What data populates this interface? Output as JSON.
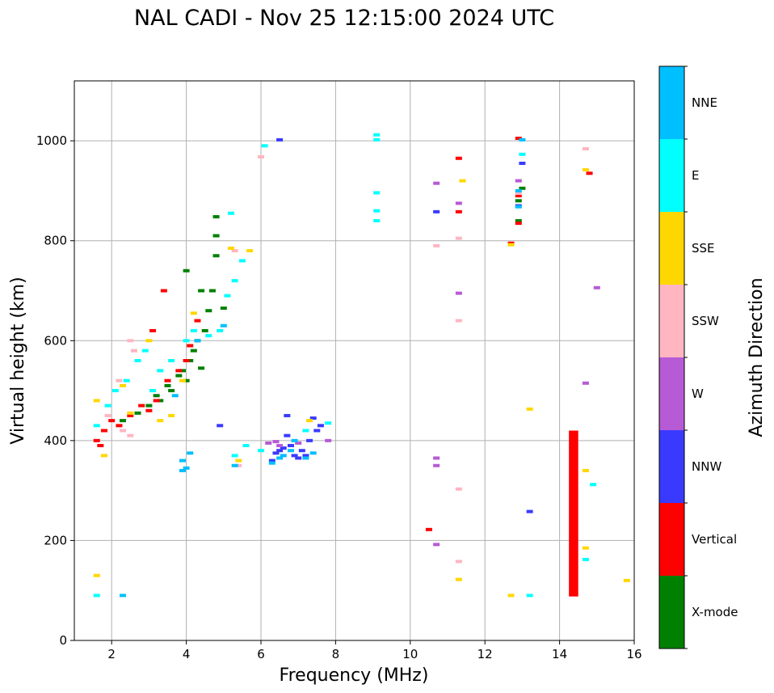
{
  "chart_data": {
    "type": "scatter",
    "title": "NAL CADI - Nov 25 12:15:00 2024 UTC",
    "xlabel": "Frequency (MHz)",
    "ylabel": "Virtual height (km)",
    "xlim": [
      1,
      16
    ],
    "ylim": [
      0,
      1120
    ],
    "xticks": [
      2,
      4,
      6,
      8,
      10,
      12,
      14,
      16
    ],
    "yticks": [
      0,
      200,
      400,
      600,
      800,
      1000
    ],
    "grid": true,
    "colorbar": {
      "label": "Azimuth Direction",
      "categories": [
        {
          "name": "X-mode",
          "color": "#008000"
        },
        {
          "name": "Vertical",
          "color": "#ff0000"
        },
        {
          "name": "NNW",
          "color": "#3a3aff"
        },
        {
          "name": "W",
          "color": "#b65ad6"
        },
        {
          "name": "SSW",
          "color": "#ffb6c1"
        },
        {
          "name": "SSE",
          "color": "#ffd700"
        },
        {
          "name": "E",
          "color": "#00ffff"
        },
        {
          "name": "NNE",
          "color": "#00bfff"
        }
      ]
    },
    "series": [
      {
        "name": "X-mode",
        "points": [
          [
            2.3,
            440
          ],
          [
            2.7,
            455
          ],
          [
            3.0,
            470
          ],
          [
            3.2,
            490
          ],
          [
            3.5,
            510
          ],
          [
            3.8,
            530
          ],
          [
            3.9,
            540
          ],
          [
            4.0,
            520
          ],
          [
            4.1,
            560
          ],
          [
            4.2,
            580
          ],
          [
            4.3,
            600
          ],
          [
            4.4,
            545
          ],
          [
            4.6,
            660
          ],
          [
            4.7,
            700
          ],
          [
            4.8,
            770
          ],
          [
            4.8,
            810
          ],
          [
            4.8,
            848
          ],
          [
            4.4,
            700
          ],
          [
            4.0,
            740
          ],
          [
            3.6,
            500
          ],
          [
            3.3,
            480
          ],
          [
            4.5,
            620
          ],
          [
            5.0,
            665
          ],
          [
            12.9,
            880
          ],
          [
            12.9,
            840
          ],
          [
            13.0,
            905
          ]
        ]
      },
      {
        "name": "Vertical",
        "points": [
          [
            1.6,
            400
          ],
          [
            1.8,
            420
          ],
          [
            2.0,
            440
          ],
          [
            2.2,
            430
          ],
          [
            2.5,
            450
          ],
          [
            2.8,
            470
          ],
          [
            3.0,
            460
          ],
          [
            3.2,
            480
          ],
          [
            3.5,
            520
          ],
          [
            3.8,
            540
          ],
          [
            4.0,
            560
          ],
          [
            4.1,
            590
          ],
          [
            4.3,
            640
          ],
          [
            3.1,
            620
          ],
          [
            3.4,
            700
          ],
          [
            1.7,
            390
          ],
          [
            11.3,
            965
          ],
          [
            11.3,
            858
          ],
          [
            12.7,
            795
          ],
          [
            12.9,
            1005
          ],
          [
            12.9,
            890
          ],
          [
            12.9,
            835
          ],
          [
            10.5,
            222
          ],
          [
            14.8,
            935
          ]
        ]
      },
      {
        "name": "NNW",
        "points": [
          [
            6.3,
            360
          ],
          [
            6.4,
            375
          ],
          [
            6.5,
            380
          ],
          [
            6.6,
            385
          ],
          [
            6.7,
            410
          ],
          [
            6.8,
            390
          ],
          [
            6.9,
            370
          ],
          [
            7.0,
            365
          ],
          [
            7.1,
            380
          ],
          [
            7.2,
            370
          ],
          [
            7.3,
            400
          ],
          [
            7.5,
            420
          ],
          [
            7.6,
            430
          ],
          [
            7.4,
            445
          ],
          [
            6.7,
            450
          ],
          [
            6.5,
            1002
          ],
          [
            4.9,
            430
          ],
          [
            10.7,
            858
          ],
          [
            13.0,
            955
          ],
          [
            13.2,
            258
          ],
          [
            12.9,
            870
          ]
        ]
      },
      {
        "name": "W",
        "points": [
          [
            6.2,
            395
          ],
          [
            6.4,
            398
          ],
          [
            6.5,
            390
          ],
          [
            7.0,
            395
          ],
          [
            7.8,
            400
          ],
          [
            10.7,
            915
          ],
          [
            11.3,
            875
          ],
          [
            11.3,
            695
          ],
          [
            10.7,
            365
          ],
          [
            10.7,
            350
          ],
          [
            10.7,
            192
          ],
          [
            15.0,
            706
          ],
          [
            14.7,
            515
          ],
          [
            12.9,
            920
          ]
        ]
      },
      {
        "name": "SSW",
        "points": [
          [
            1.9,
            450
          ],
          [
            2.3,
            420
          ],
          [
            2.5,
            410
          ],
          [
            2.5,
            600
          ],
          [
            2.6,
            580
          ],
          [
            2.2,
            520
          ],
          [
            5.4,
            350
          ],
          [
            5.3,
            780
          ],
          [
            6.0,
            968
          ],
          [
            10.7,
            790
          ],
          [
            11.3,
            805
          ],
          [
            11.3,
            640
          ],
          [
            11.3,
            303
          ],
          [
            11.3,
            158
          ],
          [
            14.7,
            984
          ],
          [
            12.9,
            895
          ]
        ]
      },
      {
        "name": "SSE",
        "points": [
          [
            1.6,
            480
          ],
          [
            1.8,
            370
          ],
          [
            2.3,
            510
          ],
          [
            2.5,
            455
          ],
          [
            3.0,
            600
          ],
          [
            3.3,
            440
          ],
          [
            3.6,
            450
          ],
          [
            3.9,
            520
          ],
          [
            4.2,
            655
          ],
          [
            5.2,
            785
          ],
          [
            5.7,
            780
          ],
          [
            5.4,
            360
          ],
          [
            7.3,
            440
          ],
          [
            11.4,
            920
          ],
          [
            12.7,
            792
          ],
          [
            13.2,
            463
          ],
          [
            14.7,
            942
          ],
          [
            14.7,
            340
          ],
          [
            14.7,
            185
          ],
          [
            15.8,
            120
          ],
          [
            11.3,
            122
          ],
          [
            12.7,
            90
          ],
          [
            1.6,
            130
          ]
        ]
      },
      {
        "name": "E",
        "points": [
          [
            1.6,
            430
          ],
          [
            1.9,
            470
          ],
          [
            2.1,
            500
          ],
          [
            2.4,
            520
          ],
          [
            2.7,
            560
          ],
          [
            2.9,
            580
          ],
          [
            3.1,
            500
          ],
          [
            3.3,
            540
          ],
          [
            3.6,
            560
          ],
          [
            4.0,
            600
          ],
          [
            4.2,
            620
          ],
          [
            4.6,
            610
          ],
          [
            4.9,
            620
          ],
          [
            5.1,
            690
          ],
          [
            5.3,
            720
          ],
          [
            5.5,
            760
          ],
          [
            5.6,
            390
          ],
          [
            5.3,
            370
          ],
          [
            6.0,
            380
          ],
          [
            6.1,
            990
          ],
          [
            9.1,
            1012
          ],
          [
            9.1,
            1002
          ],
          [
            9.1,
            896
          ],
          [
            9.1,
            860
          ],
          [
            9.1,
            840
          ],
          [
            13.0,
            973
          ],
          [
            13.2,
            90
          ],
          [
            14.9,
            312
          ],
          [
            14.7,
            162
          ],
          [
            7.8,
            435
          ],
          [
            7.2,
            420
          ],
          [
            1.6,
            90
          ],
          [
            5.2,
            855
          ]
        ]
      },
      {
        "name": "NNE",
        "points": [
          [
            2.3,
            90
          ],
          [
            3.9,
            360
          ],
          [
            4.1,
            375
          ],
          [
            3.9,
            340
          ],
          [
            4.0,
            345
          ],
          [
            5.3,
            350
          ],
          [
            6.3,
            355
          ],
          [
            6.6,
            370
          ],
          [
            6.8,
            380
          ],
          [
            7.2,
            365
          ],
          [
            7.4,
            375
          ],
          [
            6.5,
            365
          ],
          [
            6.9,
            400
          ],
          [
            5.0,
            630
          ],
          [
            4.3,
            600
          ],
          [
            3.7,
            490
          ],
          [
            13.0,
            1002
          ],
          [
            12.9,
            868
          ],
          [
            12.9,
            900
          ]
        ]
      }
    ],
    "bars": [
      {
        "label": "Vertical",
        "x_range": [
          14.25,
          14.5
        ],
        "y_range": [
          88,
          420
        ]
      }
    ]
  }
}
